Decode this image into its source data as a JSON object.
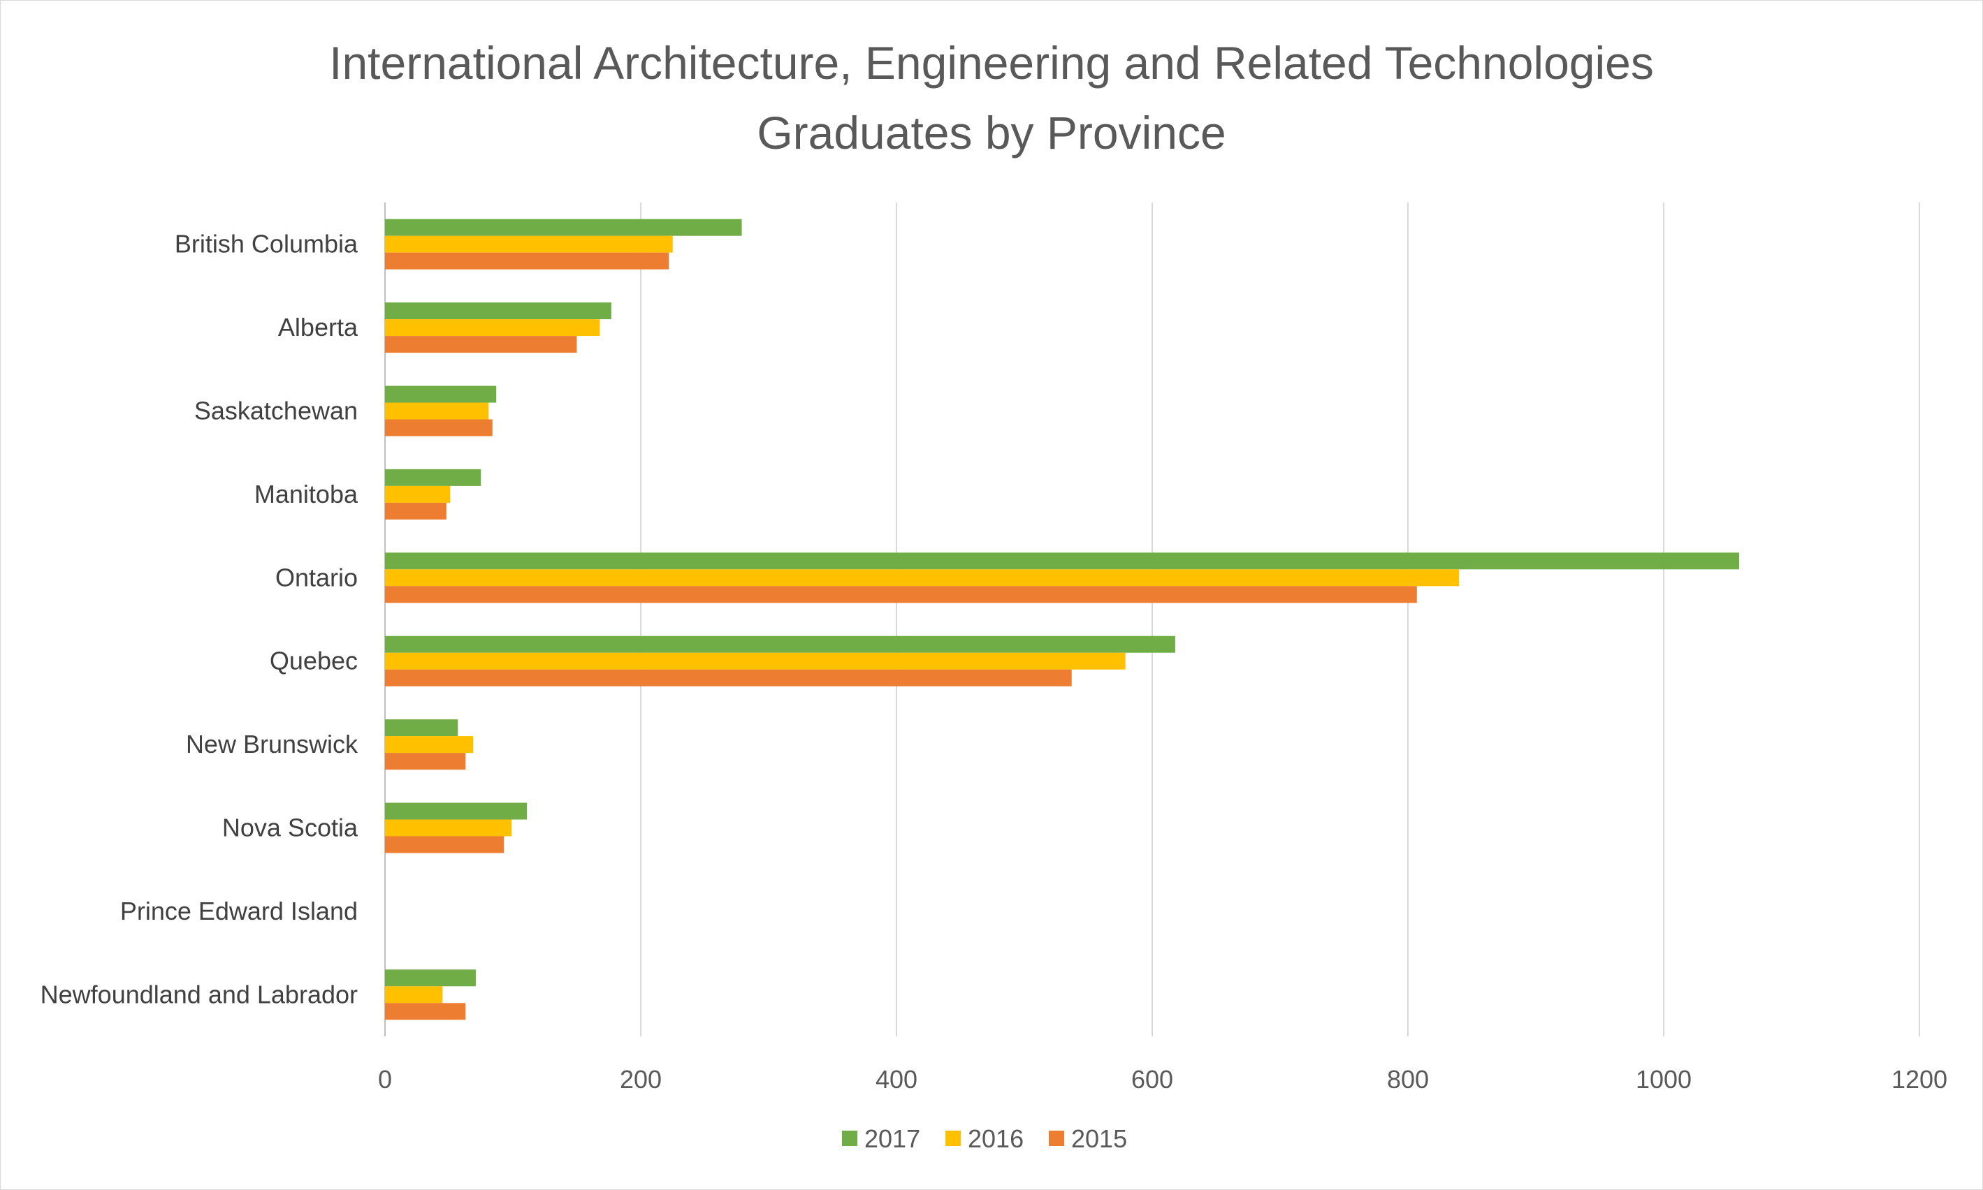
{
  "chart_data": {
    "type": "bar",
    "orientation": "horizontal",
    "title_line1": "International Architecture, Engineering and Related Technologies",
    "title_line2": "Graduates by Province",
    "categories": [
      "British Columbia",
      "Alberta",
      "Saskatchewan",
      "Manitoba",
      "Ontario",
      "Quebec",
      "New Brunswick",
      "Nova Scotia",
      "Prince Edward Island",
      "Newfoundland and Labrador"
    ],
    "series": [
      {
        "name": "2017",
        "color": "#70ad47",
        "values": [
          279,
          177,
          87,
          75,
          1059,
          618,
          57,
          111,
          0,
          71
        ]
      },
      {
        "name": "2016",
        "color": "#ffc000",
        "values": [
          225,
          168,
          81,
          51,
          840,
          579,
          69,
          99,
          0,
          45
        ]
      },
      {
        "name": "2015",
        "color": "#ed7d31",
        "values": [
          222,
          150,
          84,
          48,
          807,
          537,
          63,
          93,
          0,
          63
        ]
      }
    ],
    "x_ticks": [
      "0",
      "200",
      "400",
      "600",
      "800",
      "1000",
      "1200"
    ],
    "xlim": [
      0,
      1200
    ],
    "grid": true,
    "legend_position": "bottom"
  }
}
